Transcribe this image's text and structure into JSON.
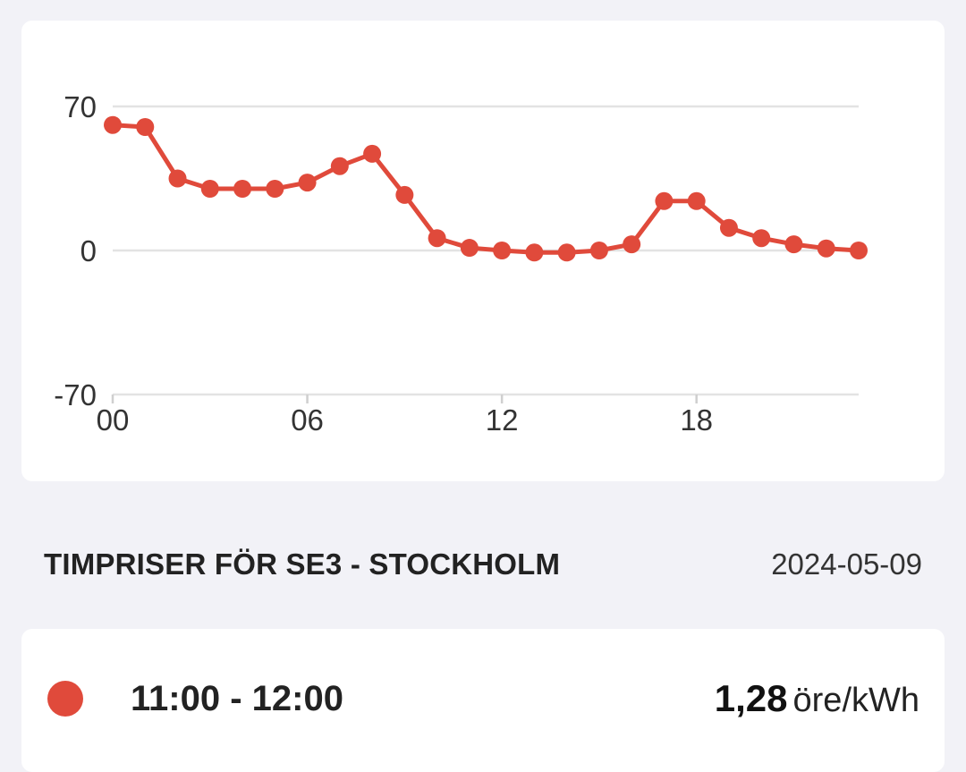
{
  "chart_data": {
    "type": "line",
    "x": [
      0,
      1,
      2,
      3,
      4,
      5,
      6,
      7,
      8,
      9,
      10,
      11,
      12,
      13,
      14,
      15,
      16,
      17,
      18,
      19,
      20,
      21,
      22,
      23
    ],
    "values": [
      61,
      60,
      35,
      30,
      30,
      30,
      33,
      41,
      47,
      27,
      6,
      1.28,
      0,
      -1,
      -1,
      0,
      3,
      24,
      24,
      11,
      6,
      3,
      1,
      0
    ],
    "ylim": [
      -70,
      70
    ],
    "yticks": [
      "70",
      "0",
      "-70"
    ],
    "ytick_values": [
      70,
      0,
      -70
    ],
    "xticks": [
      "00",
      "06",
      "12",
      "18"
    ],
    "xtick_values": [
      0,
      6,
      12,
      18
    ],
    "title": "",
    "xlabel": "",
    "ylabel": "",
    "grid": true,
    "line_color": "#e04a3b"
  },
  "header": {
    "title": "TIMPRISER FÖR SE3 - STOCKHOLM",
    "date": "2024-05-09"
  },
  "selected_hour": {
    "range": "11:00 - 12:00",
    "price": "1,28",
    "unit": "öre/kWh",
    "dot_color": "#e04a3b"
  }
}
